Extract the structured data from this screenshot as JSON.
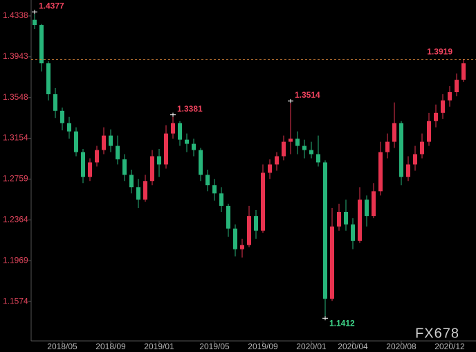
{
  "chart_data": {
    "type": "candlestick",
    "categories": [
      null,
      null,
      null,
      null,
      "2018/05",
      null,
      null,
      null,
      null,
      null,
      null,
      "2018/09",
      null,
      null,
      null,
      null,
      null,
      null,
      "2019/01",
      null,
      null,
      null,
      null,
      null,
      null,
      null,
      "2019/05",
      null,
      null,
      null,
      null,
      null,
      null,
      "2019/09",
      null,
      null,
      null,
      null,
      null,
      null,
      "2020/01",
      null,
      null,
      null,
      null,
      null,
      "2020/04",
      null,
      null,
      null,
      null,
      null,
      null,
      "2020/08",
      null,
      null,
      null,
      null,
      null,
      null,
      "2020/12",
      null,
      null
    ],
    "open": [
      1.43,
      1.425,
      1.388,
      1.358,
      1.342,
      1.33,
      1.322,
      1.302,
      1.278,
      1.292,
      1.304,
      1.318,
      1.308,
      1.295,
      1.28,
      1.268,
      1.256,
      1.274,
      1.298,
      1.29,
      1.32,
      1.33,
      1.314,
      1.31,
      1.304,
      1.28,
      1.27,
      1.262,
      1.25,
      1.228,
      1.208,
      1.212,
      1.24,
      1.226,
      1.282,
      1.29,
      1.298,
      1.312,
      1.315,
      1.308,
      1.304,
      1.3,
      1.292,
      1.16,
      1.23,
      1.244,
      1.232,
      1.216,
      1.256,
      1.24,
      1.264,
      1.302,
      1.312,
      1.33,
      1.278,
      1.29,
      1.3,
      1.312,
      1.332,
      1.34,
      1.352,
      1.36,
      1.372
    ],
    "high": [
      1.4377,
      1.426,
      1.39,
      1.364,
      1.345,
      1.336,
      1.326,
      1.305,
      1.296,
      1.308,
      1.326,
      1.324,
      1.318,
      1.3,
      1.285,
      1.276,
      1.28,
      1.304,
      1.305,
      1.328,
      1.3381,
      1.332,
      1.32,
      1.315,
      1.306,
      1.285,
      1.276,
      1.268,
      1.252,
      1.232,
      1.218,
      1.25,
      1.246,
      1.29,
      1.295,
      1.302,
      1.318,
      1.3514,
      1.322,
      1.314,
      1.312,
      1.318,
      1.294,
      1.248,
      1.252,
      1.256,
      1.238,
      1.268,
      1.26,
      1.272,
      1.312,
      1.32,
      1.35,
      1.332,
      1.298,
      1.308,
      1.32,
      1.34,
      1.348,
      1.358,
      1.366,
      1.378,
      1.3919
    ],
    "low": [
      1.421,
      1.38,
      1.352,
      1.335,
      1.323,
      1.315,
      1.298,
      1.272,
      1.274,
      1.288,
      1.3,
      1.302,
      1.29,
      1.274,
      1.262,
      1.248,
      1.254,
      1.27,
      1.278,
      1.286,
      1.315,
      1.308,
      1.302,
      1.298,
      1.274,
      1.264,
      1.255,
      1.244,
      1.22,
      1.201,
      1.2,
      1.21,
      1.218,
      1.224,
      1.276,
      1.284,
      1.294,
      1.3,
      1.3,
      1.296,
      1.296,
      1.288,
      1.1412,
      1.158,
      1.226,
      1.226,
      1.208,
      1.214,
      1.23,
      1.238,
      1.26,
      1.296,
      1.306,
      1.27,
      1.274,
      1.284,
      1.296,
      1.308,
      1.326,
      1.334,
      1.346,
      1.356,
      1.37
    ],
    "close": [
      1.425,
      1.388,
      1.358,
      1.342,
      1.33,
      1.322,
      1.302,
      1.278,
      1.292,
      1.304,
      1.318,
      1.308,
      1.295,
      1.28,
      1.268,
      1.256,
      1.274,
      1.298,
      1.29,
      1.32,
      1.33,
      1.314,
      1.31,
      1.304,
      1.28,
      1.27,
      1.262,
      1.25,
      1.228,
      1.208,
      1.212,
      1.24,
      1.226,
      1.282,
      1.29,
      1.298,
      1.312,
      1.315,
      1.308,
      1.304,
      1.3,
      1.292,
      1.16,
      1.23,
      1.244,
      1.232,
      1.216,
      1.256,
      1.24,
      1.264,
      1.302,
      1.312,
      1.33,
      1.278,
      1.29,
      1.3,
      1.312,
      1.332,
      1.34,
      1.352,
      1.36,
      1.372,
      1.388
    ],
    "up_color": "#e8334f",
    "down_color": "#27b57a",
    "ylim": [
      1.1206,
      1.4492
    ],
    "yticks": [
      1.1574,
      1.1969,
      1.2364,
      1.2759,
      1.3154,
      1.3548,
      1.3943,
      1.4338
    ],
    "marked_highs": [
      1.4377,
      1.3381,
      1.3514
    ],
    "marked_lows": [
      1.1412
    ],
    "price_line": 1.3919,
    "watermark": "FX678"
  }
}
